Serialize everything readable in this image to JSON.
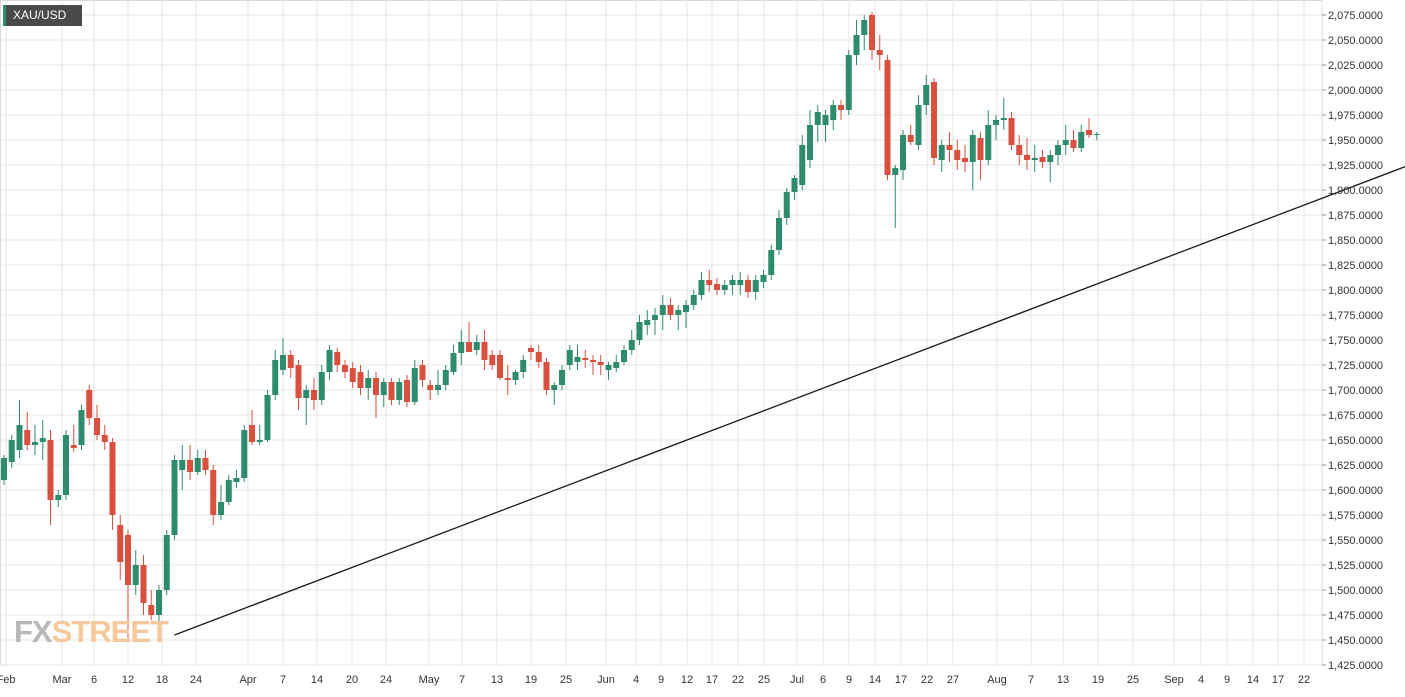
{
  "header": {
    "symbol": "XAU/USD"
  },
  "watermark": {
    "part1": "FX",
    "part2": "STREET"
  },
  "colors": {
    "up": "#2e8b6e",
    "down": "#d9503f",
    "grid": "#e6e6e6",
    "axis_text": "#333333",
    "trendline": "#1a1a1a"
  },
  "chart_data": {
    "type": "candlestick",
    "series_name": "XAU/USD",
    "ylim": [
      1425,
      2090
    ],
    "y_ticks": [
      "1,425.0000",
      "1,450.0000",
      "1,475.0000",
      "1,500.0000",
      "1,525.0000",
      "1,550.0000",
      "1,575.0000",
      "1,600.0000",
      "1,625.0000",
      "1,650.0000",
      "1,675.0000",
      "1,700.0000",
      "1,725.0000",
      "1,750.0000",
      "1,775.0000",
      "1,800.0000",
      "1,825.0000",
      "1,850.0000",
      "1,875.0000",
      "1,900.0000",
      "1,925.0000",
      "1,950.0000",
      "1,975.0000",
      "2,000.0000",
      "2,025.0000",
      "2,050.0000",
      "2,075.0000"
    ],
    "x_ticks": [
      "Feb",
      "Mar",
      "6",
      "12",
      "18",
      "24",
      "Apr",
      "7",
      "14",
      "20",
      "24",
      "May",
      "7",
      "13",
      "19",
      "25",
      "Jun",
      "4",
      "9",
      "12",
      "17",
      "22",
      "25",
      "Jul",
      "6",
      "9",
      "14",
      "17",
      "22",
      "27",
      "Aug",
      "7",
      "13",
      "19",
      "25",
      "Sep",
      "4",
      "9",
      "14",
      "17",
      "22"
    ],
    "candles": [
      {
        "o": 1610,
        "h": 1635,
        "l": 1605,
        "c": 1632
      },
      {
        "o": 1628,
        "h": 1655,
        "l": 1622,
        "c": 1650
      },
      {
        "o": 1640,
        "h": 1690,
        "l": 1632,
        "c": 1665
      },
      {
        "o": 1660,
        "h": 1678,
        "l": 1640,
        "c": 1645
      },
      {
        "o": 1645,
        "h": 1665,
        "l": 1635,
        "c": 1648
      },
      {
        "o": 1648,
        "h": 1670,
        "l": 1630,
        "c": 1652
      },
      {
        "o": 1650,
        "h": 1660,
        "l": 1565,
        "c": 1590
      },
      {
        "o": 1590,
        "h": 1600,
        "l": 1583,
        "c": 1595
      },
      {
        "o": 1595,
        "h": 1660,
        "l": 1590,
        "c": 1655
      },
      {
        "o": 1645,
        "h": 1665,
        "l": 1638,
        "c": 1642
      },
      {
        "o": 1645,
        "h": 1685,
        "l": 1640,
        "c": 1680
      },
      {
        "o": 1700,
        "h": 1705,
        "l": 1665,
        "c": 1672
      },
      {
        "o": 1672,
        "h": 1685,
        "l": 1650,
        "c": 1655
      },
      {
        "o": 1655,
        "h": 1665,
        "l": 1640,
        "c": 1648
      },
      {
        "o": 1648,
        "h": 1652,
        "l": 1560,
        "c": 1575
      },
      {
        "o": 1565,
        "h": 1575,
        "l": 1510,
        "c": 1528
      },
      {
        "o": 1555,
        "h": 1560,
        "l": 1452,
        "c": 1505
      },
      {
        "o": 1505,
        "h": 1540,
        "l": 1495,
        "c": 1525
      },
      {
        "o": 1525,
        "h": 1535,
        "l": 1475,
        "c": 1487
      },
      {
        "o": 1485,
        "h": 1500,
        "l": 1470,
        "c": 1475
      },
      {
        "o": 1475,
        "h": 1505,
        "l": 1460,
        "c": 1500
      },
      {
        "o": 1500,
        "h": 1560,
        "l": 1495,
        "c": 1555
      },
      {
        "o": 1555,
        "h": 1635,
        "l": 1550,
        "c": 1630
      },
      {
        "o": 1620,
        "h": 1645,
        "l": 1600,
        "c": 1630
      },
      {
        "o": 1630,
        "h": 1645,
        "l": 1610,
        "c": 1618
      },
      {
        "o": 1618,
        "h": 1640,
        "l": 1615,
        "c": 1632
      },
      {
        "o": 1632,
        "h": 1640,
        "l": 1615,
        "c": 1620
      },
      {
        "o": 1620,
        "h": 1625,
        "l": 1565,
        "c": 1575
      },
      {
        "o": 1575,
        "h": 1605,
        "l": 1570,
        "c": 1588
      },
      {
        "o": 1588,
        "h": 1615,
        "l": 1585,
        "c": 1610
      },
      {
        "o": 1608,
        "h": 1620,
        "l": 1602,
        "c": 1612
      },
      {
        "o": 1612,
        "h": 1665,
        "l": 1608,
        "c": 1660
      },
      {
        "o": 1665,
        "h": 1680,
        "l": 1645,
        "c": 1648
      },
      {
        "o": 1648,
        "h": 1665,
        "l": 1645,
        "c": 1650
      },
      {
        "o": 1650,
        "h": 1700,
        "l": 1648,
        "c": 1695
      },
      {
        "o": 1695,
        "h": 1740,
        "l": 1690,
        "c": 1730
      },
      {
        "o": 1720,
        "h": 1752,
        "l": 1715,
        "c": 1735
      },
      {
        "o": 1735,
        "h": 1740,
        "l": 1712,
        "c": 1722
      },
      {
        "o": 1725,
        "h": 1730,
        "l": 1680,
        "c": 1692
      },
      {
        "o": 1692,
        "h": 1705,
        "l": 1665,
        "c": 1700
      },
      {
        "o": 1700,
        "h": 1712,
        "l": 1680,
        "c": 1690
      },
      {
        "o": 1690,
        "h": 1725,
        "l": 1685,
        "c": 1718
      },
      {
        "o": 1718,
        "h": 1745,
        "l": 1710,
        "c": 1740
      },
      {
        "o": 1738,
        "h": 1742,
        "l": 1718,
        "c": 1725
      },
      {
        "o": 1725,
        "h": 1730,
        "l": 1712,
        "c": 1718
      },
      {
        "o": 1722,
        "h": 1728,
        "l": 1702,
        "c": 1708
      },
      {
        "o": 1718,
        "h": 1725,
        "l": 1695,
        "c": 1702
      },
      {
        "o": 1702,
        "h": 1720,
        "l": 1690,
        "c": 1712
      },
      {
        "o": 1712,
        "h": 1718,
        "l": 1672,
        "c": 1695
      },
      {
        "o": 1695,
        "h": 1712,
        "l": 1683,
        "c": 1708
      },
      {
        "o": 1708,
        "h": 1712,
        "l": 1685,
        "c": 1690
      },
      {
        "o": 1690,
        "h": 1712,
        "l": 1685,
        "c": 1708
      },
      {
        "o": 1710,
        "h": 1715,
        "l": 1683,
        "c": 1688
      },
      {
        "o": 1688,
        "h": 1730,
        "l": 1685,
        "c": 1722
      },
      {
        "o": 1725,
        "h": 1730,
        "l": 1703,
        "c": 1710
      },
      {
        "o": 1705,
        "h": 1710,
        "l": 1690,
        "c": 1700
      },
      {
        "o": 1700,
        "h": 1720,
        "l": 1695,
        "c": 1705
      },
      {
        "o": 1705,
        "h": 1725,
        "l": 1700,
        "c": 1720
      },
      {
        "o": 1718,
        "h": 1745,
        "l": 1715,
        "c": 1737
      },
      {
        "o": 1737,
        "h": 1760,
        "l": 1725,
        "c": 1748
      },
      {
        "o": 1748,
        "h": 1768,
        "l": 1738,
        "c": 1738
      },
      {
        "o": 1740,
        "h": 1755,
        "l": 1735,
        "c": 1748
      },
      {
        "o": 1748,
        "h": 1760,
        "l": 1720,
        "c": 1730
      },
      {
        "o": 1735,
        "h": 1740,
        "l": 1720,
        "c": 1725
      },
      {
        "o": 1735,
        "h": 1740,
        "l": 1710,
        "c": 1712
      },
      {
        "o": 1712,
        "h": 1725,
        "l": 1695,
        "c": 1710
      },
      {
        "o": 1710,
        "h": 1720,
        "l": 1705,
        "c": 1718
      },
      {
        "o": 1718,
        "h": 1735,
        "l": 1712,
        "c": 1730
      },
      {
        "o": 1742,
        "h": 1745,
        "l": 1730,
        "c": 1738
      },
      {
        "o": 1738,
        "h": 1745,
        "l": 1722,
        "c": 1728
      },
      {
        "o": 1728,
        "h": 1732,
        "l": 1695,
        "c": 1700
      },
      {
        "o": 1700,
        "h": 1708,
        "l": 1685,
        "c": 1705
      },
      {
        "o": 1705,
        "h": 1725,
        "l": 1700,
        "c": 1720
      },
      {
        "o": 1725,
        "h": 1745,
        "l": 1720,
        "c": 1740
      },
      {
        "o": 1728,
        "h": 1745,
        "l": 1720,
        "c": 1733
      },
      {
        "o": 1732,
        "h": 1740,
        "l": 1722,
        "c": 1730
      },
      {
        "o": 1730,
        "h": 1735,
        "l": 1715,
        "c": 1728
      },
      {
        "o": 1728,
        "h": 1735,
        "l": 1715,
        "c": 1725
      },
      {
        "o": 1720,
        "h": 1728,
        "l": 1710,
        "c": 1725
      },
      {
        "o": 1722,
        "h": 1735,
        "l": 1718,
        "c": 1728
      },
      {
        "o": 1728,
        "h": 1745,
        "l": 1725,
        "c": 1740
      },
      {
        "o": 1740,
        "h": 1760,
        "l": 1735,
        "c": 1750
      },
      {
        "o": 1750,
        "h": 1775,
        "l": 1745,
        "c": 1768
      },
      {
        "o": 1765,
        "h": 1780,
        "l": 1755,
        "c": 1770
      },
      {
        "o": 1770,
        "h": 1782,
        "l": 1755,
        "c": 1775
      },
      {
        "o": 1775,
        "h": 1795,
        "l": 1760,
        "c": 1785
      },
      {
        "o": 1785,
        "h": 1792,
        "l": 1770,
        "c": 1775
      },
      {
        "o": 1775,
        "h": 1785,
        "l": 1760,
        "c": 1780
      },
      {
        "o": 1778,
        "h": 1790,
        "l": 1762,
        "c": 1785
      },
      {
        "o": 1785,
        "h": 1800,
        "l": 1780,
        "c": 1795
      },
      {
        "o": 1795,
        "h": 1818,
        "l": 1790,
        "c": 1810
      },
      {
        "o": 1810,
        "h": 1820,
        "l": 1798,
        "c": 1805
      },
      {
        "o": 1806,
        "h": 1812,
        "l": 1795,
        "c": 1800
      },
      {
        "o": 1800,
        "h": 1810,
        "l": 1795,
        "c": 1805
      },
      {
        "o": 1805,
        "h": 1815,
        "l": 1795,
        "c": 1810
      },
      {
        "o": 1805,
        "h": 1818,
        "l": 1795,
        "c": 1810
      },
      {
        "o": 1810,
        "h": 1815,
        "l": 1792,
        "c": 1798
      },
      {
        "o": 1798,
        "h": 1815,
        "l": 1790,
        "c": 1810
      },
      {
        "o": 1808,
        "h": 1820,
        "l": 1802,
        "c": 1815
      },
      {
        "o": 1815,
        "h": 1845,
        "l": 1810,
        "c": 1840
      },
      {
        "o": 1840,
        "h": 1880,
        "l": 1835,
        "c": 1872
      },
      {
        "o": 1872,
        "h": 1902,
        "l": 1865,
        "c": 1898
      },
      {
        "o": 1898,
        "h": 1915,
        "l": 1890,
        "c": 1912
      },
      {
        "o": 1905,
        "h": 1955,
        "l": 1900,
        "c": 1945
      },
      {
        "o": 1930,
        "h": 1980,
        "l": 1922,
        "c": 1965
      },
      {
        "o": 1965,
        "h": 1985,
        "l": 1948,
        "c": 1978
      },
      {
        "o": 1965,
        "h": 1980,
        "l": 1948,
        "c": 1975
      },
      {
        "o": 1970,
        "h": 1990,
        "l": 1960,
        "c": 1985
      },
      {
        "o": 1985,
        "h": 1990,
        "l": 1970,
        "c": 1980
      },
      {
        "o": 1980,
        "h": 2040,
        "l": 1975,
        "c": 2035
      },
      {
        "o": 2035,
        "h": 2070,
        "l": 2025,
        "c": 2055
      },
      {
        "o": 2055,
        "h": 2075,
        "l": 2040,
        "c": 2070
      },
      {
        "o": 2075,
        "h": 2078,
        "l": 2030,
        "c": 2040
      },
      {
        "o": 2040,
        "h": 2055,
        "l": 2020,
        "c": 2035
      },
      {
        "o": 2030,
        "h": 2035,
        "l": 1910,
        "c": 1915
      },
      {
        "o": 1915,
        "h": 1925,
        "l": 1862,
        "c": 1922
      },
      {
        "o": 1920,
        "h": 1960,
        "l": 1910,
        "c": 1955
      },
      {
        "o": 1955,
        "h": 1965,
        "l": 1945,
        "c": 1948
      },
      {
        "o": 1945,
        "h": 1995,
        "l": 1940,
        "c": 1985
      },
      {
        "o": 1985,
        "h": 2015,
        "l": 1975,
        "c": 2005
      },
      {
        "o": 2008,
        "h": 2012,
        "l": 1925,
        "c": 1932
      },
      {
        "o": 1930,
        "h": 1950,
        "l": 1918,
        "c": 1945
      },
      {
        "o": 1945,
        "h": 1958,
        "l": 1928,
        "c": 1940
      },
      {
        "o": 1940,
        "h": 1950,
        "l": 1920,
        "c": 1930
      },
      {
        "o": 1932,
        "h": 1945,
        "l": 1918,
        "c": 1928
      },
      {
        "o": 1928,
        "h": 1960,
        "l": 1900,
        "c": 1955
      },
      {
        "o": 1952,
        "h": 1958,
        "l": 1910,
        "c": 1930
      },
      {
        "o": 1930,
        "h": 1980,
        "l": 1925,
        "c": 1965
      },
      {
        "o": 1965,
        "h": 1975,
        "l": 1950,
        "c": 1970
      },
      {
        "o": 1970,
        "h": 1992,
        "l": 1960,
        "c": 1972
      },
      {
        "o": 1972,
        "h": 1978,
        "l": 1940,
        "c": 1945
      },
      {
        "o": 1945,
        "h": 1955,
        "l": 1925,
        "c": 1935
      },
      {
        "o": 1935,
        "h": 1952,
        "l": 1920,
        "c": 1930
      },
      {
        "o": 1930,
        "h": 1945,
        "l": 1918,
        "c": 1932
      },
      {
        "o": 1933,
        "h": 1940,
        "l": 1922,
        "c": 1928
      },
      {
        "o": 1928,
        "h": 1940,
        "l": 1908,
        "c": 1935
      },
      {
        "o": 1935,
        "h": 1950,
        "l": 1925,
        "c": 1945
      },
      {
        "o": 1945,
        "h": 1965,
        "l": 1935,
        "c": 1950
      },
      {
        "o": 1950,
        "h": 1960,
        "l": 1938,
        "c": 1942
      },
      {
        "o": 1942,
        "h": 1965,
        "l": 1938,
        "c": 1958
      },
      {
        "o": 1960,
        "h": 1972,
        "l": 1952,
        "c": 1955
      },
      {
        "o": 1955,
        "h": 1958,
        "l": 1950,
        "c": 1956
      }
    ],
    "trendline": [
      {
        "i": 22,
        "v": 1455
      },
      {
        "i": 200,
        "v": 1980
      }
    ]
  }
}
